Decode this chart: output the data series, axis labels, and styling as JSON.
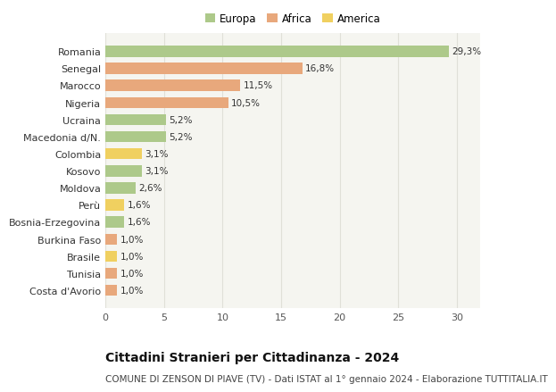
{
  "countries": [
    "Romania",
    "Senegal",
    "Marocco",
    "Nigeria",
    "Ucraina",
    "Macedonia d/N.",
    "Colombia",
    "Kosovo",
    "Moldova",
    "Perù",
    "Bosnia-Erzegovina",
    "Burkina Faso",
    "Brasile",
    "Tunisia",
    "Costa d'Avorio"
  ],
  "values": [
    29.3,
    16.8,
    11.5,
    10.5,
    5.2,
    5.2,
    3.1,
    3.1,
    2.6,
    1.6,
    1.6,
    1.0,
    1.0,
    1.0,
    1.0
  ],
  "labels": [
    "29,3%",
    "16,8%",
    "11,5%",
    "10,5%",
    "5,2%",
    "5,2%",
    "3,1%",
    "3,1%",
    "2,6%",
    "1,6%",
    "1,6%",
    "1,0%",
    "1,0%",
    "1,0%",
    "1,0%"
  ],
  "continents": [
    "Europa",
    "Africa",
    "Africa",
    "Africa",
    "Europa",
    "Europa",
    "America",
    "Europa",
    "Europa",
    "America",
    "Europa",
    "Africa",
    "America",
    "Africa",
    "Africa"
  ],
  "colors": {
    "Europa": "#adc98a",
    "Africa": "#e8a87c",
    "America": "#f0d060"
  },
  "title": "Cittadini Stranieri per Cittadinanza - 2024",
  "subtitle": "COMUNE DI ZENSON DI PIAVE (TV) - Dati ISTAT al 1° gennaio 2024 - Elaborazione TUTTITALIA.IT",
  "xlim": [
    0,
    32
  ],
  "xticks": [
    0,
    5,
    10,
    15,
    20,
    25,
    30
  ],
  "background_color": "#ffffff",
  "plot_bg_color": "#f5f5f0",
  "grid_color": "#e0e0d8",
  "bar_height": 0.65,
  "label_fontsize": 7.5,
  "title_fontsize": 10,
  "subtitle_fontsize": 7.5,
  "ytick_fontsize": 8,
  "xtick_fontsize": 8,
  "legend_fontsize": 8.5
}
